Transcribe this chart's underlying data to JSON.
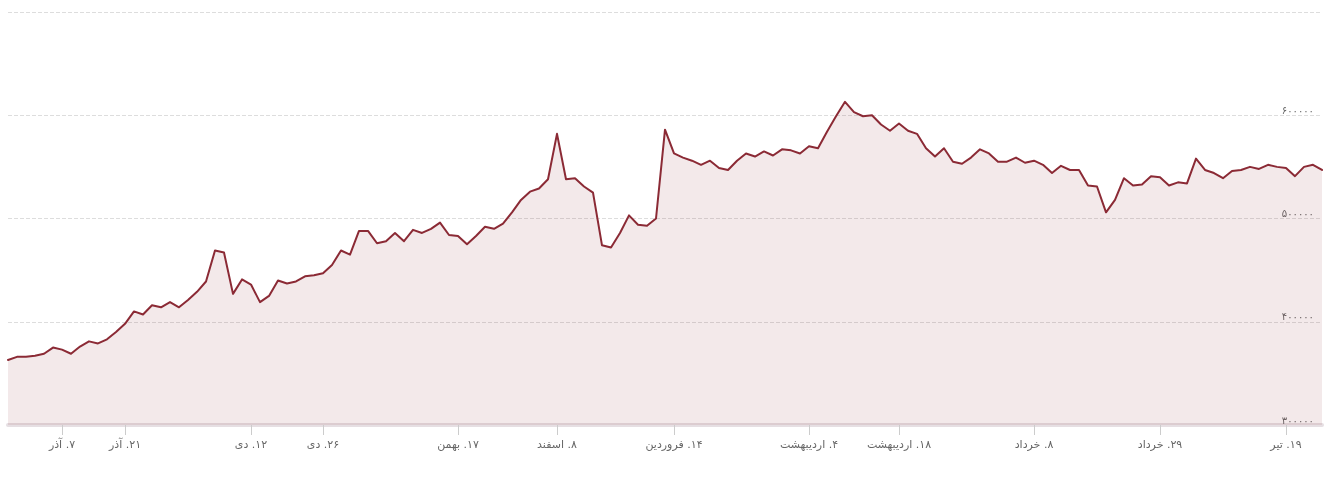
{
  "chart_data": {
    "type": "area",
    "categories": [
      null,
      null,
      null,
      null,
      null,
      null,
      "۷. آذر",
      null,
      null,
      null,
      null,
      null,
      null,
      "۲۱. آذر",
      null,
      null,
      null,
      null,
      null,
      null,
      null,
      null,
      null,
      null,
      null,
      null,
      null,
      "۱۲. دی",
      null,
      null,
      null,
      null,
      null,
      null,
      null,
      "۲۶. دی",
      null,
      null,
      null,
      null,
      null,
      null,
      null,
      null,
      null,
      null,
      null,
      null,
      null,
      null,
      "۱۷. بهمن",
      null,
      null,
      null,
      null,
      null,
      null,
      null,
      null,
      null,
      null,
      "۸. اسفند",
      null,
      null,
      null,
      null,
      null,
      null,
      null,
      null,
      null,
      null,
      null,
      null,
      "۱۴. فروردین",
      null,
      null,
      null,
      null,
      null,
      null,
      null,
      null,
      null,
      null,
      null,
      null,
      null,
      null,
      "۴. اردیبهشت",
      null,
      null,
      null,
      null,
      null,
      null,
      null,
      null,
      null,
      "۱۸. اردیبهشت",
      null,
      null,
      null,
      null,
      null,
      null,
      null,
      null,
      null,
      null,
      null,
      null,
      null,
      null,
      "۸. خرداد",
      null,
      null,
      null,
      null,
      null,
      null,
      null,
      null,
      null,
      null,
      null,
      null,
      null,
      "۲۹. خرداد",
      null,
      null,
      null,
      null,
      null,
      null,
      null,
      null,
      null,
      null,
      null,
      null,
      null,
      "۱۹. تیر",
      null,
      null,
      null,
      null
    ],
    "series": [
      {
        "color": "#8b2a35",
        "values": [
          363000,
          366000,
          366000,
          367000,
          369000,
          375000,
          373000,
          369000,
          376000,
          381000,
          379000,
          383000,
          390000,
          398000,
          410000,
          407000,
          416000,
          414000,
          419000,
          414000,
          421000,
          429000,
          439000,
          469000,
          467000,
          427000,
          441000,
          436000,
          419000,
          425000,
          440000,
          437000,
          439000,
          444000,
          445000,
          447000,
          455000,
          469000,
          465000,
          488000,
          488000,
          476000,
          478000,
          486000,
          478000,
          489000,
          486000,
          490000,
          496000,
          484000,
          483000,
          475000,
          483000,
          492000,
          490000,
          495000,
          506000,
          518000,
          526000,
          529000,
          538000,
          582000,
          538000,
          539000,
          531000,
          525000,
          474000,
          472000,
          486000,
          503000,
          494000,
          493000,
          500000,
          586000,
          563000,
          559000,
          556000,
          552000,
          556000,
          549000,
          547000,
          556000,
          563000,
          560000,
          565000,
          561000,
          567000,
          566000,
          563000,
          570000,
          568000,
          584000,
          599000,
          613000,
          603000,
          599000,
          600000,
          591000,
          585000,
          592000,
          585000,
          582000,
          568000,
          560000,
          568000,
          555000,
          553000,
          559000,
          567000,
          563000,
          555000,
          555000,
          559000,
          554000,
          556000,
          552000,
          544000,
          551000,
          547000,
          547000,
          532000,
          531000,
          506000,
          518000,
          539000,
          532000,
          533000,
          541000,
          540000,
          532000,
          535000,
          534000,
          558000,
          547000,
          544000,
          539000,
          546000,
          547000,
          550000,
          548000,
          552000,
          550000,
          549000,
          541000,
          550000,
          552000,
          547000
        ]
      }
    ],
    "ylim": [
      300000,
      700000
    ],
    "yticks": [
      {
        "value": 300000,
        "label": "۳۰۰۰۰۰"
      },
      {
        "value": 400000,
        "label": "۴۰۰۰۰۰"
      },
      {
        "value": 500000,
        "label": "۵۰۰۰۰۰"
      },
      {
        "value": 600000,
        "label": "۶۰۰۰۰۰"
      },
      {
        "value": 700000,
        "label": null
      }
    ],
    "grid": "y",
    "marker": "none",
    "line_style": "solid"
  }
}
